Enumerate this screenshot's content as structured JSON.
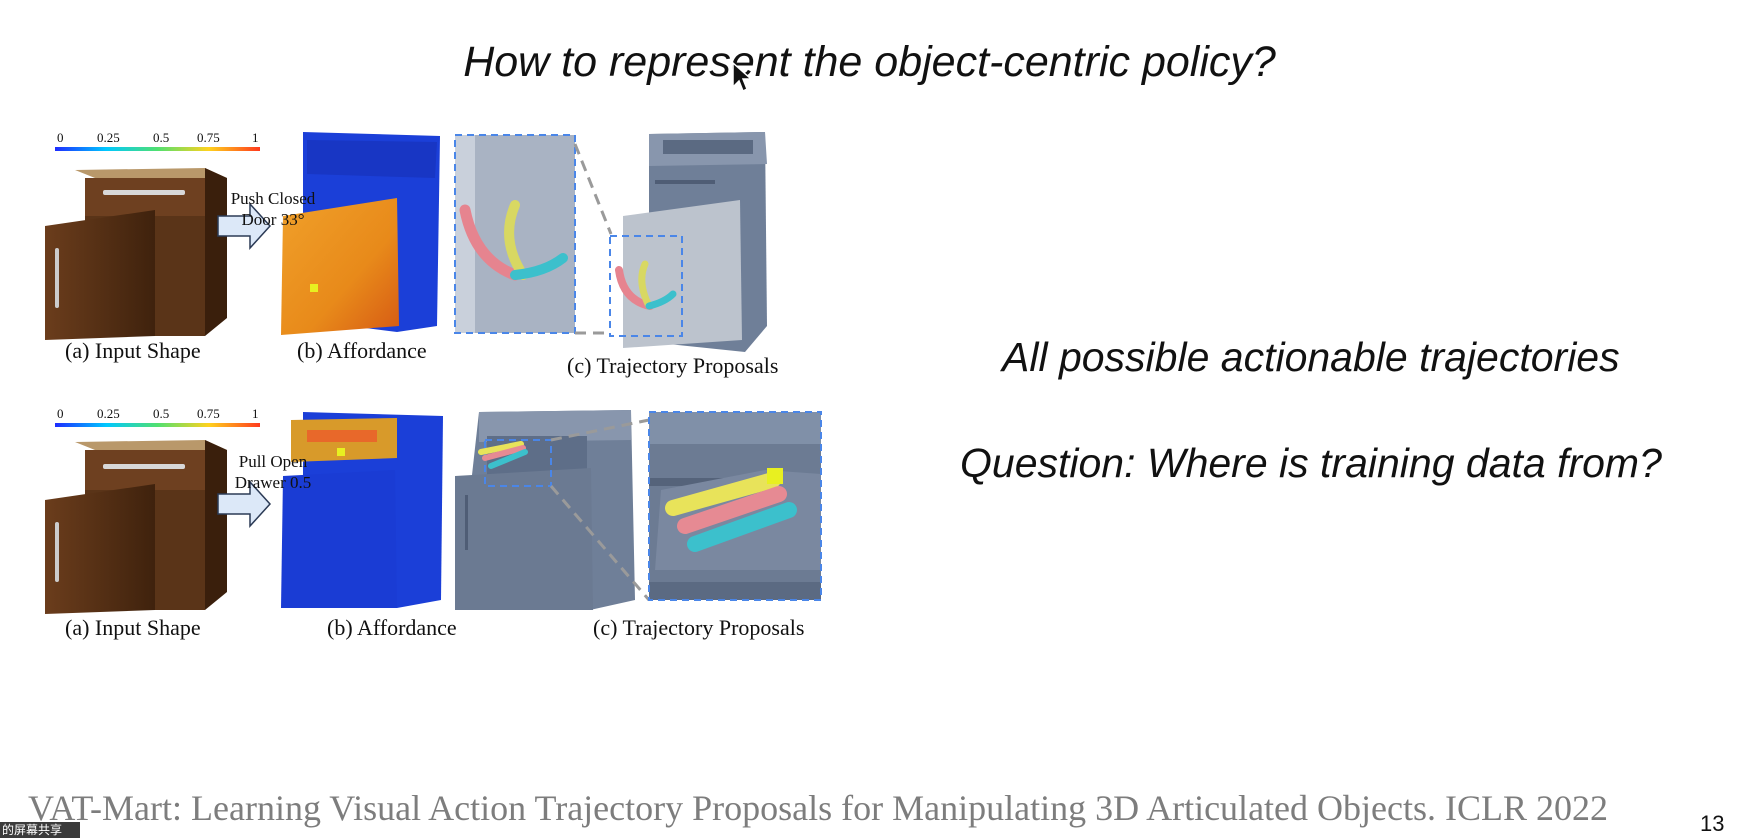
{
  "slide": {
    "title": "How to represent the object-centric policy?",
    "side_text_1": "All possible actionable trajectories",
    "side_text_2": "Question: Where is training data from?",
    "citation": "VAT-Mart: Learning Visual Action Trajectory Proposals for Manipulating 3D Articulated Objects. ICLR 2022",
    "page_number": "13",
    "share_badge": "的屏幕共享"
  },
  "figure": {
    "colorbar_ticks": [
      "0",
      "0.25",
      "0.5",
      "0.75",
      "1"
    ],
    "row1": {
      "action_line1": "Push Closed",
      "action_line2": "Door 33°",
      "cap_a": "(a)  Input Shape",
      "cap_b": "(b)  Affordance",
      "cap_c": "(c)  Trajectory Proposals"
    },
    "row2": {
      "action_line1": "Pull Open",
      "action_line2": "Drawer 0.5",
      "cap_a": "(a)  Input Shape",
      "cap_b": "(b)  Affordance",
      "cap_c": "(c)  Trajectory Proposals"
    }
  },
  "colors": {
    "wood": "#5a3418",
    "affordance_blue": "#1b3fd8",
    "affordance_hot": "#e8a020",
    "slate": "#6f7f98",
    "trajectory_yellow": "#e8e35a",
    "trajectory_pink": "#e68a93",
    "trajectory_cyan": "#3cc0cc"
  }
}
